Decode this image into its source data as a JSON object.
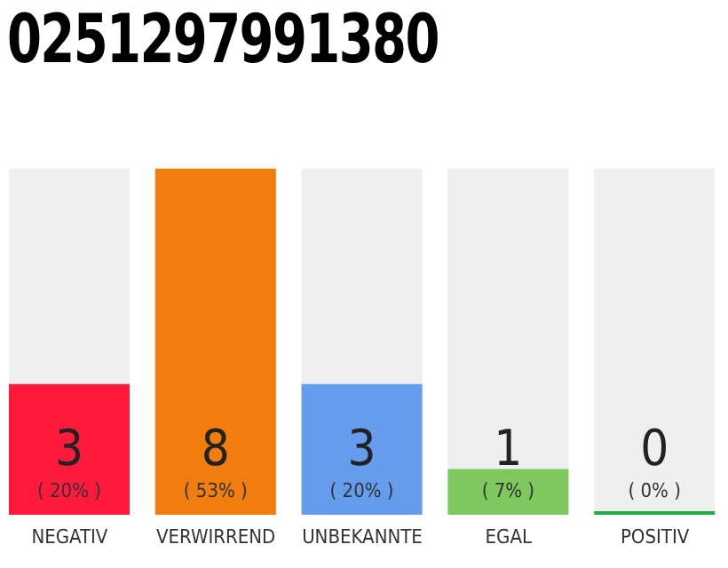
{
  "chart_data": {
    "type": "bar",
    "title": "0251297991380",
    "categories": [
      "NEGATIV",
      "VERWIRREND",
      "UNBEKANNTE",
      "EGAL",
      "POSITIV"
    ],
    "values": [
      20,
      53,
      20,
      7,
      0
    ],
    "colors": [
      "#ff1a3c",
      "#f07d0d",
      "#659cec",
      "#7dc95e",
      "#22aa44"
    ],
    "value_labels": [
      "( 20% )",
      "( 53% )",
      "( 20% )",
      "( 7% )",
      "( 0% )"
    ],
    "annotations": [
      "3",
      "8",
      "3",
      "1",
      "0"
    ],
    "tick_labels": "x"
  }
}
